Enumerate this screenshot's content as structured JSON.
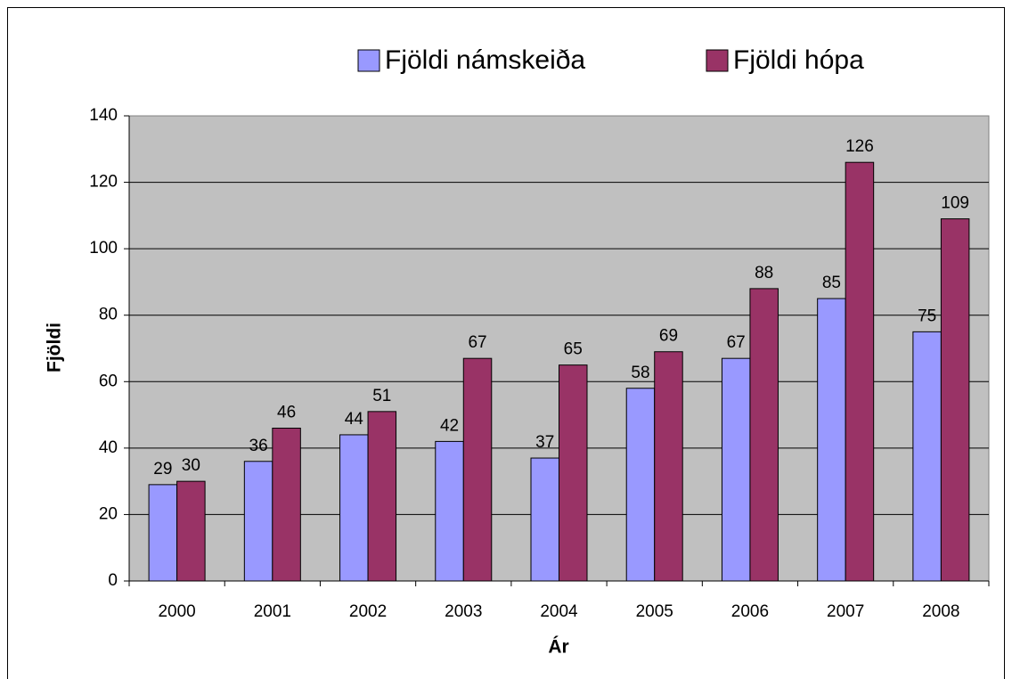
{
  "chart_data": {
    "type": "bar",
    "categories": [
      "2000",
      "2001",
      "2002",
      "2003",
      "2004",
      "2005",
      "2006",
      "2007",
      "2008"
    ],
    "series": [
      {
        "name": "Fjöldi námskeiða",
        "color": "#9999ff",
        "values": [
          29,
          36,
          44,
          42,
          37,
          58,
          67,
          85,
          75
        ]
      },
      {
        "name": "Fjöldi hópa",
        "color": "#993366",
        "values": [
          30,
          46,
          51,
          67,
          65,
          69,
          88,
          126,
          109
        ]
      }
    ],
    "xlabel": "Ár",
    "ylabel": "Fjöldi",
    "ylim": [
      0,
      140
    ],
    "yticks": [
      0,
      20,
      40,
      60,
      80,
      100,
      120,
      140
    ],
    "grid": true,
    "legend": "top"
  }
}
